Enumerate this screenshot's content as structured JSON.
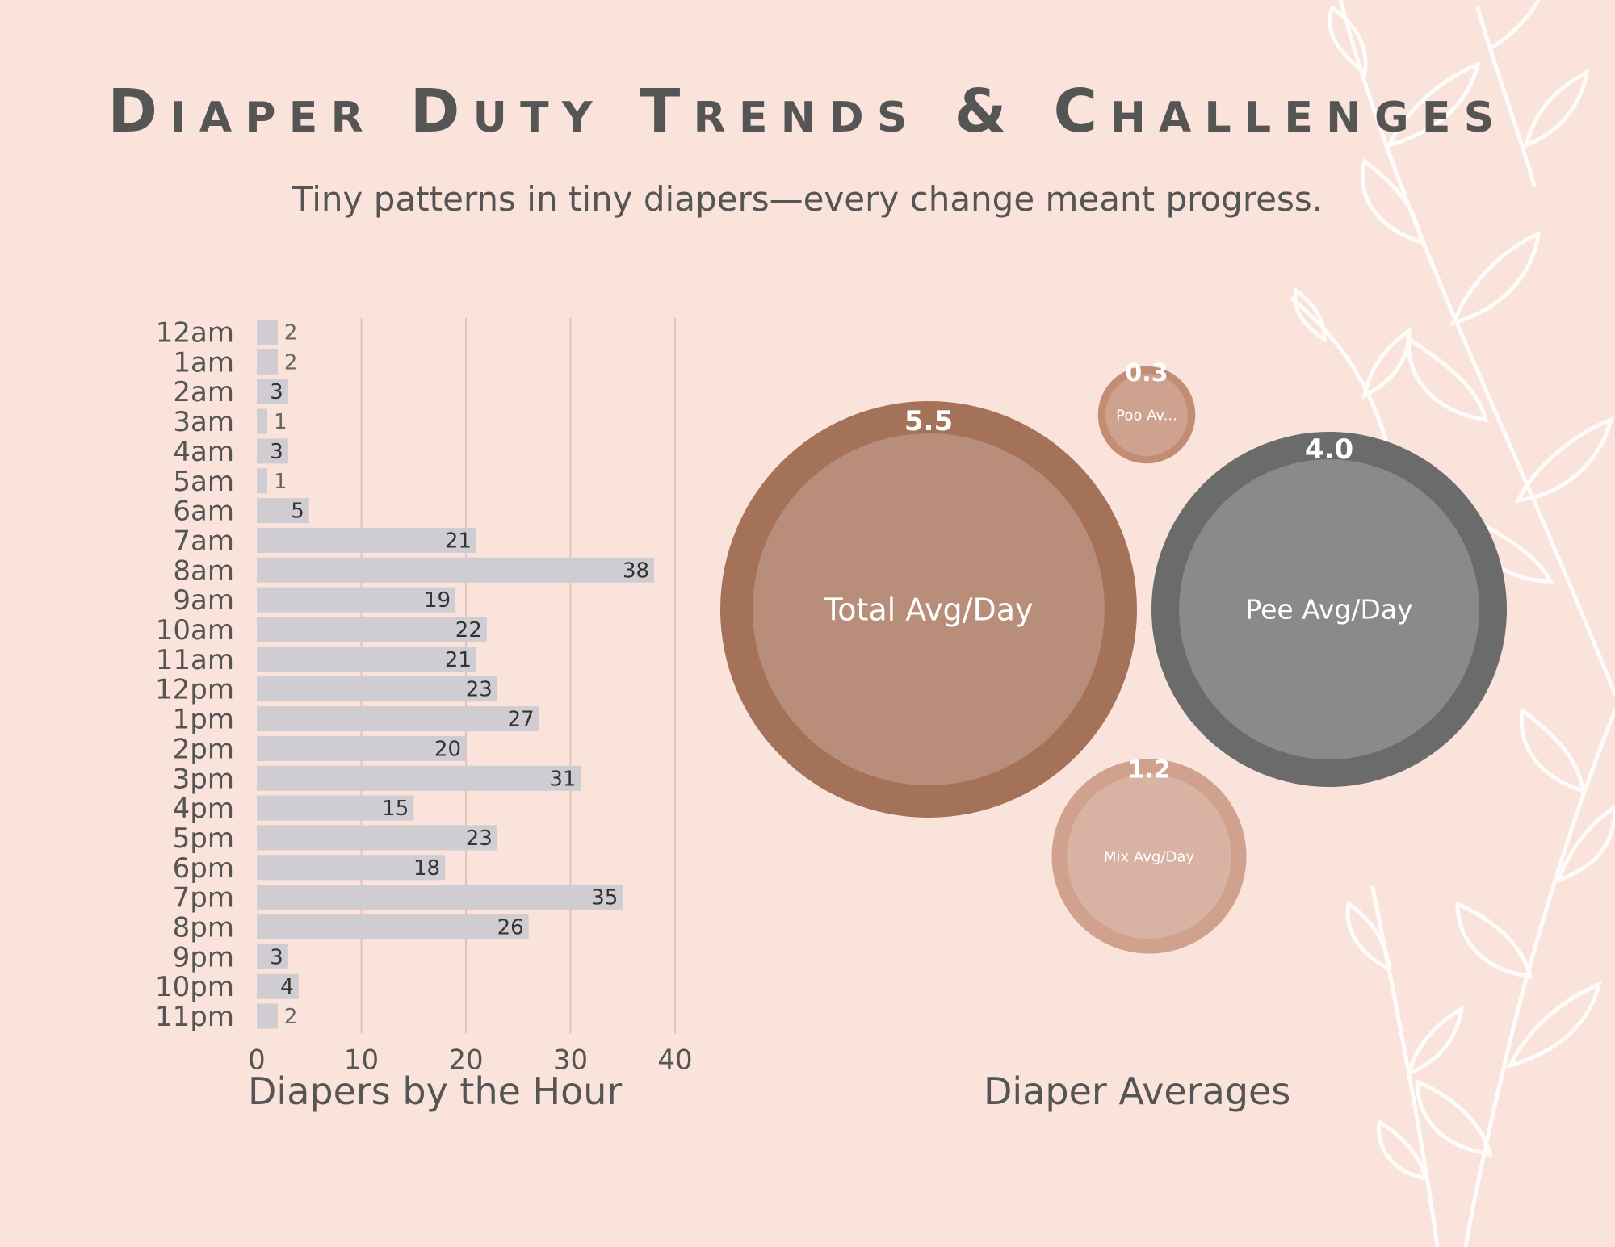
{
  "header": {
    "title": "Diaper Duty Trends & Challenges",
    "subtitle": "Tiny patterns in tiny diapers—every change meant progress."
  },
  "colors": {
    "background": "#f9e3da",
    "bar": "#cfcdd2",
    "grid": "#e2c4b8",
    "text": "#555555",
    "vine": "#ffffff"
  },
  "chart_data": [
    {
      "type": "bar",
      "orientation": "horizontal",
      "title": "Diapers by the Hour",
      "categories": [
        "12am",
        "1am",
        "2am",
        "3am",
        "4am",
        "5am",
        "6am",
        "7am",
        "8am",
        "9am",
        "10am",
        "11am",
        "12pm",
        "1pm",
        "2pm",
        "3pm",
        "4pm",
        "5pm",
        "6pm",
        "7pm",
        "8pm",
        "9pm",
        "10pm",
        "11pm"
      ],
      "values": [
        2,
        2,
        3,
        1,
        3,
        1,
        5,
        21,
        38,
        19,
        22,
        21,
        23,
        27,
        20,
        31,
        15,
        23,
        18,
        35,
        26,
        3,
        4,
        2
      ],
      "xlim": [
        0,
        40
      ],
      "xticks": [
        0,
        10,
        20,
        30,
        40
      ],
      "grid": true
    },
    {
      "type": "bubble",
      "title": "Diaper Averages",
      "items": [
        {
          "label": "Total Avg/Day",
          "display_label": "Total Avg/Day",
          "value": 5.5,
          "value_text": "5.5",
          "outer": "#a47159",
          "inner": "#b88d7a",
          "label_color": "#ffffff"
        },
        {
          "label": "Pee Avg/Day",
          "display_label": "Pee Avg/Day",
          "value": 4.0,
          "value_text": "4.0",
          "outer": "#6b6b6b",
          "inner": "#8a8a8a",
          "label_color": "#ffffff"
        },
        {
          "label": "Mix Avg/Day",
          "display_label": "Mix Avg/Day",
          "value": 1.2,
          "value_text": "1.2",
          "outer": "#d0a18d",
          "inner": "#d8b3a4",
          "label_color": "#ffffff"
        },
        {
          "label": "Poo Avg/Day",
          "display_label": "Poo Av...",
          "value": 0.3,
          "value_text": "0.3",
          "outer": "#c38d74",
          "inner": "#cfa28f",
          "label_color": "#ffffff"
        }
      ]
    }
  ]
}
